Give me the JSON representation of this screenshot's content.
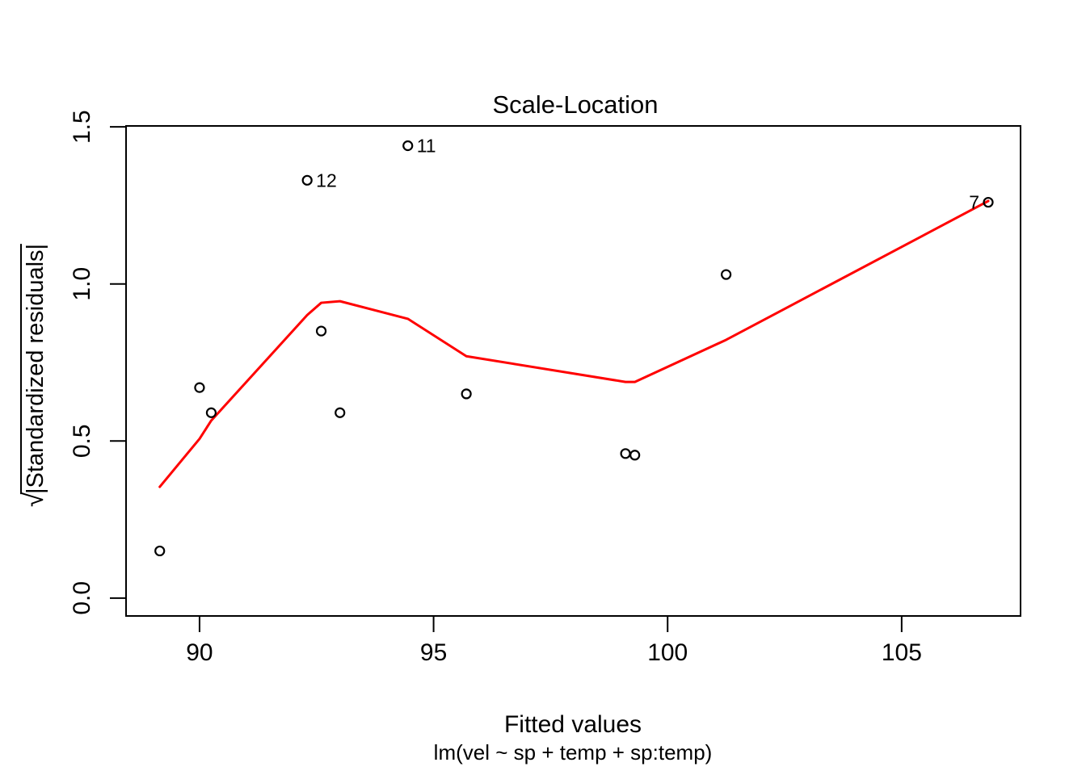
{
  "title": "Scale-Location",
  "x_axis": {
    "label": "Fitted values",
    "formula": "lm(vel ~ sp + temp + sp:temp)"
  },
  "y_axis": {
    "radical": "√",
    "label": "|Standardized residuals|"
  },
  "colors": {
    "background": "#FFFFFF",
    "axis": "#000000",
    "points": "#000000",
    "smooth_line": "#FF0000",
    "text": "#000000"
  },
  "chart_data": {
    "type": "scatter",
    "title": "Scale-Location",
    "xlabel": "Fitted values",
    "ylabel": "sqrt(|Standardized residuals|)",
    "xlim": [
      88.43,
      107.54
    ],
    "ylim": [
      -0.057,
      1.503
    ],
    "grid": false,
    "legend": "none",
    "x_ticks": [
      "90",
      "95",
      "100",
      "105"
    ],
    "y_ticks": [
      "0.0",
      "0.5",
      "1.0",
      "1.5"
    ],
    "points": [
      {
        "x": 89.15,
        "y": 0.15
      },
      {
        "x": 90.0,
        "y": 0.67
      },
      {
        "x": 90.25,
        "y": 0.59
      },
      {
        "x": 92.3,
        "y": 1.33,
        "label": "12",
        "label_side": "right"
      },
      {
        "x": 92.6,
        "y": 0.85
      },
      {
        "x": 93.0,
        "y": 0.59
      },
      {
        "x": 94.45,
        "y": 1.44,
        "label": "11",
        "label_side": "right"
      },
      {
        "x": 95.7,
        "y": 0.65
      },
      {
        "x": 99.1,
        "y": 0.46
      },
      {
        "x": 99.3,
        "y": 0.455
      },
      {
        "x": 101.25,
        "y": 1.03
      },
      {
        "x": 106.85,
        "y": 1.26,
        "label": "7",
        "label_side": "left"
      }
    ],
    "smooth_line": [
      {
        "x": 89.15,
        "y": 0.354
      },
      {
        "x": 90.0,
        "y": 0.507
      },
      {
        "x": 90.25,
        "y": 0.565
      },
      {
        "x": 92.3,
        "y": 0.901
      },
      {
        "x": 92.6,
        "y": 0.94
      },
      {
        "x": 93.0,
        "y": 0.945
      },
      {
        "x": 94.45,
        "y": 0.889
      },
      {
        "x": 95.7,
        "y": 0.77
      },
      {
        "x": 99.1,
        "y": 0.688
      },
      {
        "x": 99.3,
        "y": 0.688
      },
      {
        "x": 101.25,
        "y": 0.822
      },
      {
        "x": 106.85,
        "y": 1.264
      }
    ]
  }
}
